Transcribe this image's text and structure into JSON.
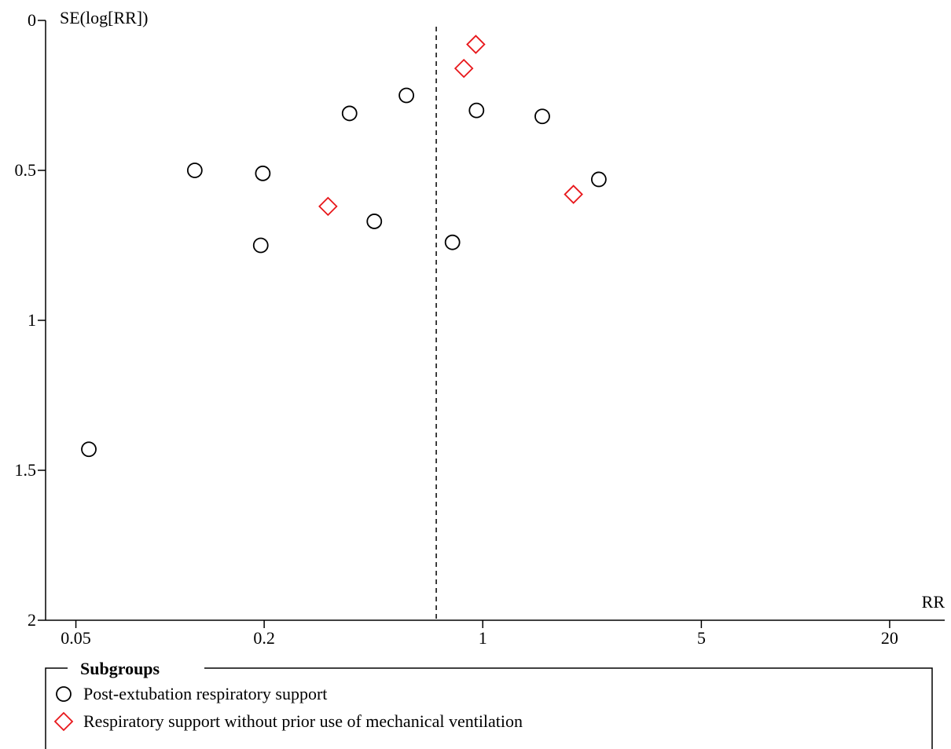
{
  "chart_data": {
    "type": "scatter",
    "title": "",
    "xlabel": "RR",
    "ylabel": "SE(log[RR])",
    "x_scale": "log",
    "xlim": [
      0.04,
      30
    ],
    "ylim": [
      0,
      2
    ],
    "y_inverted": true,
    "x_ticks": [
      0.05,
      0.2,
      1,
      5,
      20
    ],
    "x_tick_labels": [
      "0.05",
      "0.2",
      "1",
      "5",
      "20"
    ],
    "y_ticks": [
      0,
      0.5,
      1,
      1.5,
      2
    ],
    "y_tick_labels": [
      "0",
      "0.5",
      "1",
      "1.5",
      "2"
    ],
    "reference_line": {
      "x": 0.71,
      "style": "dashed"
    },
    "grid": false,
    "legend": {
      "title": "Subgroups",
      "placement": "bottom"
    },
    "series": [
      {
        "name": "Post-extubation respiratory support",
        "marker": "circle",
        "color": "#000000",
        "points": [
          {
            "x": 0.055,
            "y": 1.43
          },
          {
            "x": 0.12,
            "y": 0.5
          },
          {
            "x": 0.195,
            "y": 0.75
          },
          {
            "x": 0.198,
            "y": 0.51
          },
          {
            "x": 0.375,
            "y": 0.31
          },
          {
            "x": 0.45,
            "y": 0.67
          },
          {
            "x": 0.57,
            "y": 0.25
          },
          {
            "x": 0.8,
            "y": 0.74
          },
          {
            "x": 0.955,
            "y": 0.3
          },
          {
            "x": 1.55,
            "y": 0.32
          },
          {
            "x": 2.35,
            "y": 0.53
          }
        ]
      },
      {
        "name": "Respiratory support without prior use of mechanical ventilation",
        "marker": "diamond",
        "color": "#e8171b",
        "points": [
          {
            "x": 0.32,
            "y": 0.62
          },
          {
            "x": 0.87,
            "y": 0.16
          },
          {
            "x": 0.95,
            "y": 0.08
          },
          {
            "x": 1.95,
            "y": 0.58
          }
        ]
      }
    ]
  }
}
